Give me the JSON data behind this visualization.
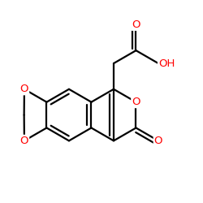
{
  "bg_color": "#ffffff",
  "bond_color": "#000000",
  "oxygen_color": "#ff0000",
  "lw": 1.6,
  "dbl_sep": 0.018,
  "fs": 9.5,
  "figsize": [
    2.5,
    2.5
  ],
  "dpi": 100,
  "xlim": [
    0.05,
    0.95
  ],
  "ylim": [
    0.15,
    0.88
  ]
}
